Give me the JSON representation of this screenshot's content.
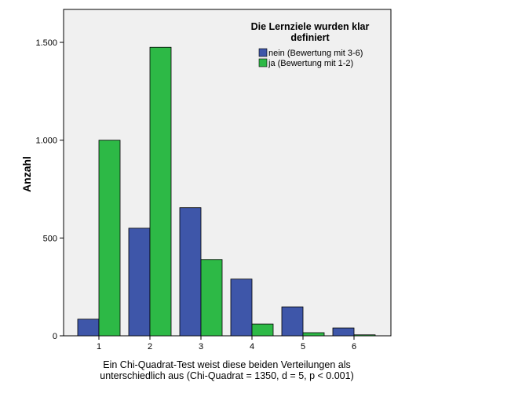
{
  "chart_data": {
    "type": "bar",
    "categories": [
      "1",
      "2",
      "3",
      "4",
      "5",
      "6"
    ],
    "series": [
      {
        "name": "nein (Bewertung mit 3-6)",
        "color": "#3e56a9",
        "values": [
          85,
          550,
          655,
          290,
          148,
          40
        ]
      },
      {
        "name": "ja (Bewertung mit 1-2)",
        "color": "#2db946",
        "values": [
          1000,
          1475,
          390,
          60,
          16,
          5
        ]
      }
    ],
    "title": "",
    "ylabel": "Anzahl",
    "xlabel": "Ein Chi-Quadrat-Test weist diese beiden Verteilungen als unterschiedlich aus (Chi-Quadrat = 1350, d = 5, p < 0.001)",
    "xlabel_lines": [
      "Ein Chi-Quadrat-Test weist diese beiden Verteilungen als",
      "unterschiedlich aus (Chi-Quadrat = 1350, d = 5, p < 0.001)"
    ],
    "ylim": [
      0,
      1500
    ],
    "yticks": [
      0,
      500,
      1000,
      1500
    ],
    "ytick_labels": [
      "0",
      "500",
      "1.000",
      "1.500"
    ],
    "legend": {
      "title_lines": [
        "Die Lernziele wurden klar",
        "definiert"
      ],
      "placement": "top-right"
    },
    "grid": false,
    "plot_background": "#f0f0f0"
  }
}
